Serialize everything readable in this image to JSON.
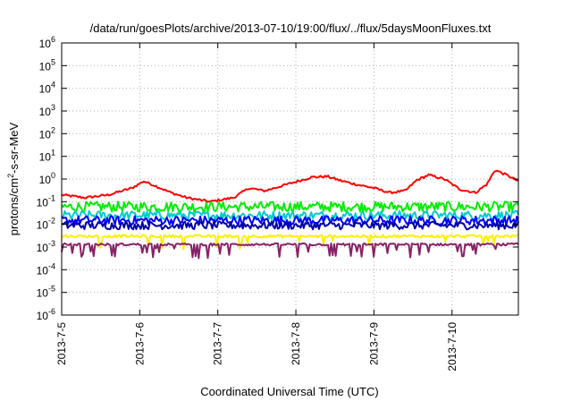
{
  "chart_data": {
    "type": "line",
    "title": "/data/run/goesPlots/archive/2013-07-10/19:00/flux/../flux/5daysMoonFluxes.txt",
    "xlabel": "Coordinated Universal Time (UTC)",
    "ylabel": "protons/cm",
    "ylabel_sup": "2",
    "ylabel_tail": "-s-sr-MeV",
    "yscale": "log",
    "ylim_exp": [
      -6,
      6
    ],
    "y_tick_exponents": [
      -6,
      -5,
      -4,
      -3,
      -2,
      -1,
      0,
      1,
      2,
      3,
      4,
      5,
      6
    ],
    "y_tick_base": "10",
    "xlim_days": [
      0,
      5.85
    ],
    "x_tick_labels": [
      "2013-7-5",
      "2013-7-6",
      "2013-7-7",
      "2013-7-8",
      "2013-7-9",
      "2013-7-10"
    ],
    "grid": true,
    "legend": "none",
    "series": [
      {
        "color": "#ff0000",
        "base": 0.9,
        "noise": 0.1,
        "spike": 0.0,
        "keys": [
          [
            0,
            0.2
          ],
          [
            0.3,
            0.15
          ],
          [
            0.6,
            0.2
          ],
          [
            0.9,
            0.4
          ],
          [
            1.05,
            0.8
          ],
          [
            1.2,
            0.5
          ],
          [
            1.4,
            0.25
          ],
          [
            1.6,
            0.15
          ],
          [
            1.9,
            0.1
          ],
          [
            2.2,
            0.15
          ],
          [
            2.4,
            0.4
          ],
          [
            2.6,
            0.3
          ],
          [
            2.9,
            0.6
          ],
          [
            3.2,
            1.2
          ],
          [
            3.4,
            1.3
          ],
          [
            3.6,
            0.8
          ],
          [
            3.8,
            0.55
          ],
          [
            4.0,
            0.4
          ],
          [
            4.2,
            0.25
          ],
          [
            4.4,
            0.3
          ],
          [
            4.55,
            0.9
          ],
          [
            4.7,
            1.5
          ],
          [
            4.9,
            1.0
          ],
          [
            5.1,
            0.35
          ],
          [
            5.3,
            0.25
          ],
          [
            5.45,
            0.6
          ],
          [
            5.55,
            2.5
          ],
          [
            5.7,
            1.5
          ],
          [
            5.85,
            0.8
          ]
        ]
      },
      {
        "color": "#00ee00",
        "base": 0.06,
        "noise": 0.45,
        "spike": 0.0,
        "keys": []
      },
      {
        "color": "#00cccc",
        "base": 0.025,
        "noise": 0.4,
        "spike": 0.0,
        "keys": []
      },
      {
        "color": "#0000ff",
        "base": 0.015,
        "noise": 0.4,
        "spike": 0.0,
        "keys": []
      },
      {
        "color": "#0000aa",
        "base": 0.009,
        "noise": 0.35,
        "spike": 0.0,
        "keys": []
      },
      {
        "color": "#ffee00",
        "base": 0.003,
        "noise": 0.12,
        "spike": 0.08,
        "keys": []
      },
      {
        "color": "#882266",
        "base": 0.0013,
        "noise": 0.1,
        "spike": 0.12,
        "keys": []
      }
    ]
  }
}
